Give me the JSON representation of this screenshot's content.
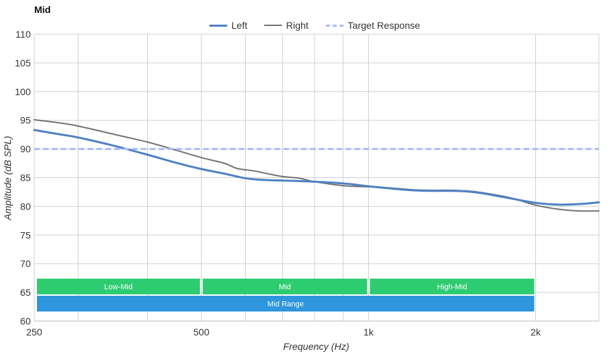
{
  "chart_data": {
    "type": "line",
    "title": "Mid",
    "xlabel": "Frequency (Hz)",
    "ylabel": "Amplitude (dB SPL)",
    "x_scale": "log",
    "xlim": [
      250,
      2600
    ],
    "ylim": [
      60,
      110
    ],
    "y_ticks": [
      60,
      65,
      70,
      75,
      80,
      85,
      90,
      95,
      100,
      105,
      110
    ],
    "x_major_ticks": [
      {
        "value": 250,
        "label": "250"
      },
      {
        "value": 500,
        "label": "500"
      },
      {
        "value": 1000,
        "label": "1k"
      },
      {
        "value": 2000,
        "label": "2k"
      }
    ],
    "x_minor_ticks": [
      300,
      400,
      600,
      700,
      800,
      900
    ],
    "grid": true,
    "legend_position": "top-center",
    "series": [
      {
        "name": "Left",
        "color": "#4f81c3",
        "style": "solid",
        "points": [
          [
            250,
            93.3
          ],
          [
            280,
            92.5
          ],
          [
            300,
            92.0
          ],
          [
            350,
            90.5
          ],
          [
            400,
            89.0
          ],
          [
            450,
            87.6
          ],
          [
            500,
            86.5
          ],
          [
            550,
            85.7
          ],
          [
            600,
            84.9
          ],
          [
            650,
            84.6
          ],
          [
            700,
            84.5
          ],
          [
            800,
            84.3
          ],
          [
            900,
            84.0
          ],
          [
            1000,
            83.5
          ],
          [
            1100,
            83.1
          ],
          [
            1200,
            82.8
          ],
          [
            1300,
            82.7
          ],
          [
            1400,
            82.7
          ],
          [
            1500,
            82.6
          ],
          [
            1600,
            82.3
          ],
          [
            1800,
            81.4
          ],
          [
            2000,
            80.6
          ],
          [
            2200,
            80.3
          ],
          [
            2400,
            80.4
          ],
          [
            2600,
            80.7
          ]
        ]
      },
      {
        "name": "Right",
        "color": "#737373",
        "style": "solid",
        "points": [
          [
            250,
            95.1
          ],
          [
            280,
            94.5
          ],
          [
            300,
            94.0
          ],
          [
            350,
            92.5
          ],
          [
            400,
            91.2
          ],
          [
            450,
            89.8
          ],
          [
            500,
            88.5
          ],
          [
            550,
            87.5
          ],
          [
            580,
            86.6
          ],
          [
            620,
            86.2
          ],
          [
            650,
            85.8
          ],
          [
            700,
            85.2
          ],
          [
            750,
            84.9
          ],
          [
            800,
            84.3
          ],
          [
            900,
            83.6
          ],
          [
            1000,
            83.4
          ],
          [
            1100,
            83.2
          ],
          [
            1200,
            82.9
          ],
          [
            1300,
            82.8
          ],
          [
            1400,
            82.8
          ],
          [
            1500,
            82.7
          ],
          [
            1600,
            82.4
          ],
          [
            1800,
            81.5
          ],
          [
            2000,
            80.2
          ],
          [
            2200,
            79.5
          ],
          [
            2400,
            79.2
          ],
          [
            2600,
            79.2
          ]
        ]
      },
      {
        "name": "Target Response",
        "color": "#aabcff",
        "style": "dashed",
        "points": [
          [
            250,
            90
          ],
          [
            2600,
            90
          ]
        ]
      }
    ],
    "bands": [
      {
        "label": "Low-Mid",
        "from": 250,
        "to": 500,
        "color": "#2ecc71",
        "row": 0
      },
      {
        "label": "Mid",
        "from": 500,
        "to": 1000,
        "color": "#2ecc71",
        "row": 0
      },
      {
        "label": "High-Mid",
        "from": 1000,
        "to": 2000,
        "color": "#2ecc71",
        "row": 0
      },
      {
        "label": "Mid Range",
        "from": 250,
        "to": 2000,
        "color": "#2f95dc",
        "row": 1
      }
    ]
  }
}
